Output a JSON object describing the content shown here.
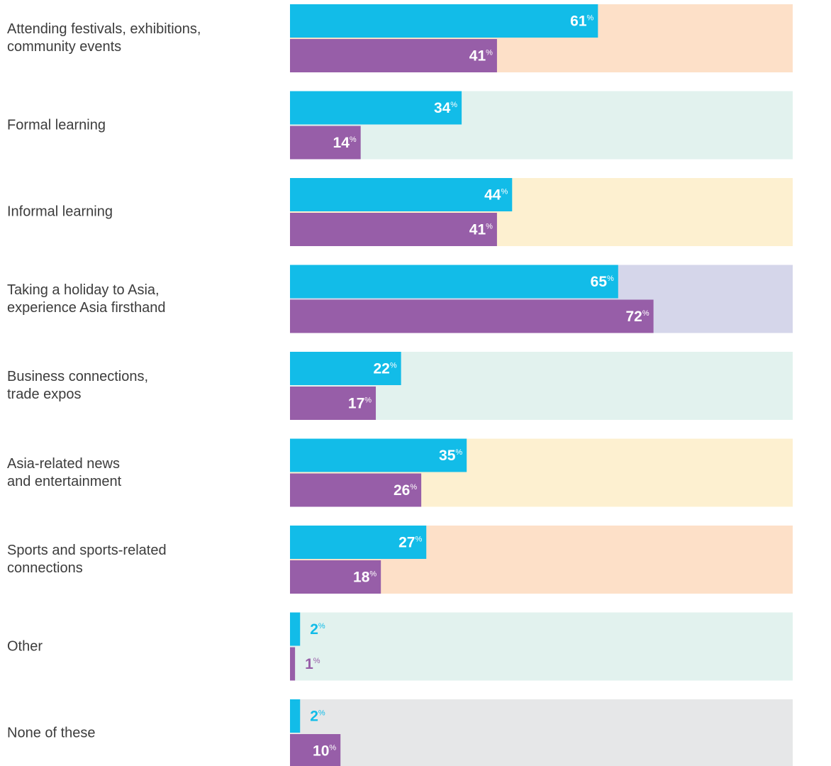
{
  "chart_data": {
    "type": "bar",
    "orientation": "horizontal",
    "categories": [
      "Attending festivals, exhibitions,\ncommunity events",
      "Formal learning",
      "Informal learning",
      "Taking a holiday to Asia,\nexperience Asia firsthand",
      "Business connections,\ntrade expos",
      "Asia-related news\nand entertainment",
      "Sports and sports-related\nconnections",
      "Other",
      "None of these"
    ],
    "series": [
      {
        "color": "#12bce8",
        "values": [
          61,
          34,
          44,
          65,
          22,
          35,
          27,
          2,
          2
        ],
        "value_labels": [
          "61%",
          "34%",
          "44%",
          "65%",
          "22%",
          "35%",
          "27%",
          "2%",
          "2%"
        ]
      },
      {
        "color": "#975ea8",
        "values": [
          41,
          14,
          41,
          72,
          17,
          26,
          18,
          1,
          10
        ],
        "value_labels": [
          "41%",
          "14%",
          "41%",
          "72%",
          "17%",
          "26%",
          "18%",
          "1%",
          "10%"
        ]
      }
    ],
    "xlim": [
      0,
      100
    ],
    "background_colors": [
      "#fde0c8",
      "#e2f2ee",
      "#fdf0d0",
      "#d5d6ea",
      "#e2f2ee",
      "#fdf0d0",
      "#fde0c8",
      "#e2f2ee",
      "#e6e7e8"
    ]
  }
}
